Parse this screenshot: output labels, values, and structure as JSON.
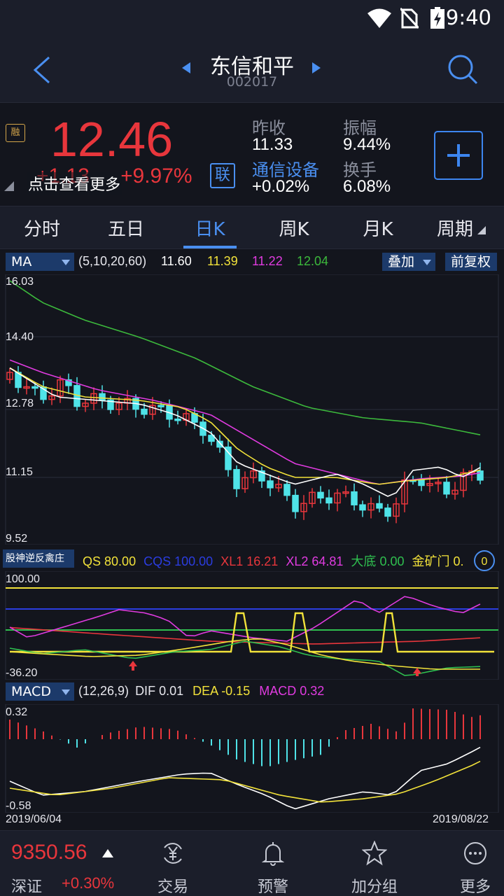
{
  "status_bar": {
    "time": "9:40"
  },
  "header": {
    "title": "东信和平",
    "code": "002017"
  },
  "quote": {
    "price": "12.46",
    "change": "+1.13",
    "change_pct": "+9.97%",
    "hint": "点击查看更多",
    "rong_badge": "融",
    "lian_badge": "联",
    "prev_close_label": "昨收",
    "prev_close": "11.33",
    "industry": "通信设备",
    "industry_change": "+0.02%",
    "amplitude_label": "振幅",
    "amplitude": "9.44%",
    "turnover_label": "换手",
    "turnover": "6.08%"
  },
  "tabs": [
    {
      "label": "分时"
    },
    {
      "label": "五日"
    },
    {
      "label": "日K"
    },
    {
      "label": "周K"
    },
    {
      "label": "月K"
    },
    {
      "label": "周期"
    }
  ],
  "ma_bar": {
    "select": "MA",
    "params": "(5,10,20,60)",
    "ma5": "11.60",
    "ma10": "11.39",
    "ma20": "11.22",
    "ma60": "12.04",
    "overlay": "叠加",
    "adjust": "前复权",
    "colors": {
      "ma5": "#ffffff",
      "ma10": "#f2e23a",
      "ma20": "#e03be0",
      "ma60": "#3cb93c"
    }
  },
  "kline_axis": [
    "16.03",
    "14.40",
    "12.78",
    "11.15",
    "9.52"
  ],
  "indicator": {
    "name": "股神逆反禽庄",
    "qs_label": "QS",
    "qs": "80.00",
    "cqs_label": "CQS",
    "cqs": "100.00",
    "xl1_label": "XL1",
    "xl1": "16.21",
    "xl2_label": "XL2",
    "xl2": "64.81",
    "dadi_label": "大底",
    "dadi": "0.00",
    "jkm_label": "金矿门",
    "jkm": "0.",
    "axis_top": "100.00",
    "axis_bottom": "-36.20"
  },
  "macd": {
    "select": "MACD",
    "params": "(12,26,9)",
    "dif_label": "DIF",
    "dif": "0.01",
    "dea_label": "DEA",
    "dea": "-0.15",
    "macd_label": "MACD",
    "macd": "0.32",
    "axis_top": "0.32",
    "axis_bottom": "-0.58"
  },
  "dates": {
    "start": "2019/06/04",
    "end": "2019/08/22"
  },
  "bottom_bar": {
    "index_value": "9350.56",
    "index_name": "深证",
    "index_change": "+0.30%",
    "nav": [
      {
        "label": "交易",
        "icon": "yuan-exchange-icon"
      },
      {
        "label": "预警",
        "icon": "bell-icon"
      },
      {
        "label": "加分组",
        "icon": "star-icon"
      },
      {
        "label": "更多",
        "icon": "more-icon"
      }
    ]
  },
  "colors": {
    "up": "#e8363c",
    "down": "#4fe3e8",
    "accent": "#4a8ff0"
  }
}
